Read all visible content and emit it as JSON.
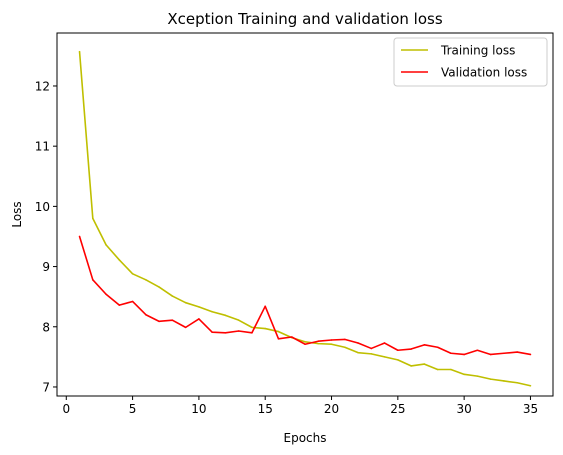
{
  "chart_data": {
    "type": "line",
    "title": "Xception Training and validation loss",
    "xlabel": "Epochs",
    "ylabel": "Loss",
    "xlim": [
      -0.7,
      36.7
    ],
    "ylim": [
      6.85,
      12.88
    ],
    "xticks": [
      0,
      5,
      10,
      15,
      20,
      25,
      30,
      35
    ],
    "yticks": [
      7,
      8,
      9,
      10,
      11,
      12
    ],
    "grid": false,
    "legend_position": "top-right",
    "x": [
      1,
      2,
      3,
      4,
      5,
      6,
      7,
      8,
      9,
      10,
      11,
      12,
      13,
      14,
      15,
      16,
      17,
      18,
      19,
      20,
      21,
      22,
      23,
      24,
      25,
      26,
      27,
      28,
      29,
      30,
      31,
      32,
      33,
      34,
      35
    ],
    "series": [
      {
        "name": "Training loss",
        "color": "#bfbf00",
        "values": [
          12.57,
          9.8,
          9.36,
          9.11,
          8.88,
          8.78,
          8.66,
          8.51,
          8.4,
          8.33,
          8.25,
          8.19,
          8.11,
          7.99,
          7.97,
          7.92,
          7.82,
          7.75,
          7.72,
          7.71,
          7.66,
          7.57,
          7.55,
          7.5,
          7.45,
          7.35,
          7.38,
          7.29,
          7.29,
          7.21,
          7.18,
          7.13,
          7.1,
          7.07,
          7.02
        ]
      },
      {
        "name": "Validation loss",
        "color": "#ff0000",
        "values": [
          9.5,
          8.78,
          8.54,
          8.36,
          8.42,
          8.2,
          8.09,
          8.11,
          7.99,
          8.13,
          7.91,
          7.9,
          7.93,
          7.9,
          8.34,
          7.8,
          7.83,
          7.71,
          7.76,
          7.78,
          7.79,
          7.73,
          7.64,
          7.73,
          7.61,
          7.63,
          7.7,
          7.66,
          7.56,
          7.54,
          7.61,
          7.54,
          7.56,
          7.58,
          7.54
        ]
      }
    ]
  }
}
